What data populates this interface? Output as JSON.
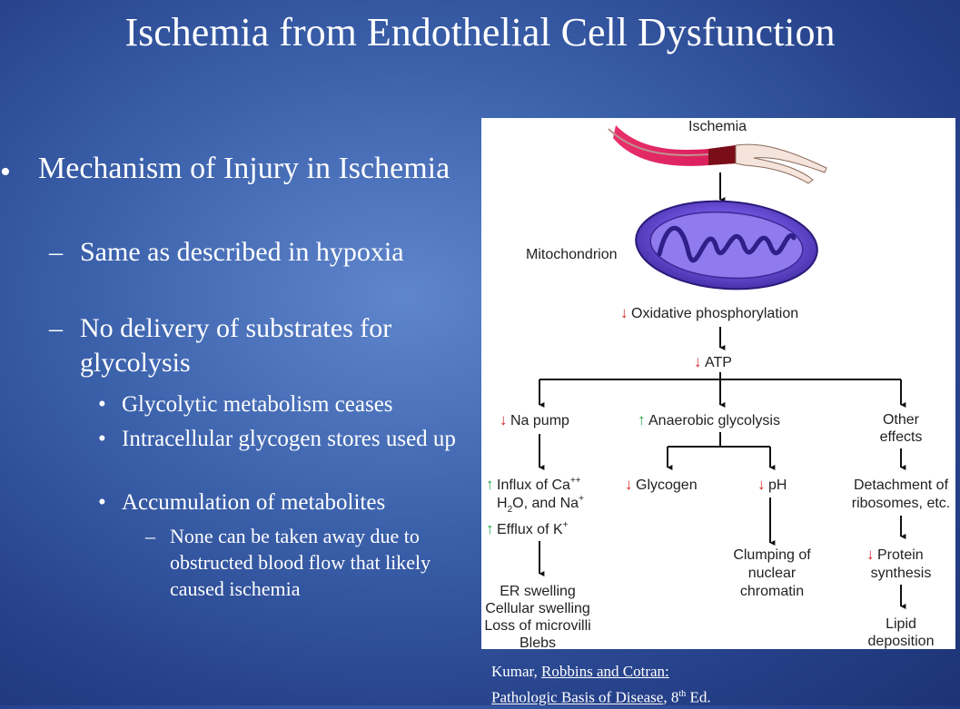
{
  "slide": {
    "title": "Ischemia from Endothelial Cell Dysfunction",
    "bullet_1": "Mechanism of Injury in Ischemia",
    "sub_1": "Same as described in hypoxia",
    "sub_2": "No delivery of substrates for glycolysis",
    "subsub_1": "Glycolytic metabolism ceases",
    "subsub_2": "Intracellular glycogen stores used up",
    "subsub_3": "Accumulation of metabolites",
    "subsubsub_1": "None can be taken away due to obstructed blood flow that likely caused ischemia"
  },
  "diagram": {
    "ischemia": "Ischemia",
    "mitochondrion": "Mitochondrion",
    "oxphos": "Oxidative phosphorylation",
    "atp": "ATP",
    "na_pump": "Na pump",
    "anaerobic": "Anaerobic glycolysis",
    "other_1": "Other",
    "other_2": "effects",
    "influx_1": "Influx of Ca",
    "influx_1_sup": "++",
    "influx_2a": "H",
    "influx_2_sub": "2",
    "influx_2b": "O, and Na",
    "influx_2_sup": "+",
    "efflux": "Efflux of K",
    "efflux_sup": "+",
    "glycogen": "Glycogen",
    "ph": "pH",
    "detach_1": "Detachment of",
    "detach_2": "ribosomes, etc.",
    "er_1": "ER swelling",
    "er_2": "Cellular swelling",
    "er_3": "Loss of microvilli",
    "er_4": "Blebs",
    "clump_1": "Clumping of",
    "clump_2": "nuclear",
    "clump_3": "chromatin",
    "protein_1": "Protein",
    "protein_2": "synthesis",
    "lipid_1": "Lipid",
    "lipid_2": "deposition"
  },
  "citation": {
    "author": "Kumar, ",
    "book_1": "Robbins and Cotran:",
    "book_2": "Pathologic Basis of Disease",
    "ed_prefix": ", 8",
    "ed_sup": "th",
    "ed_suffix": " Ed."
  },
  "colors": {
    "down_arrow": "#d42020",
    "up_arrow": "#1aa53a"
  }
}
